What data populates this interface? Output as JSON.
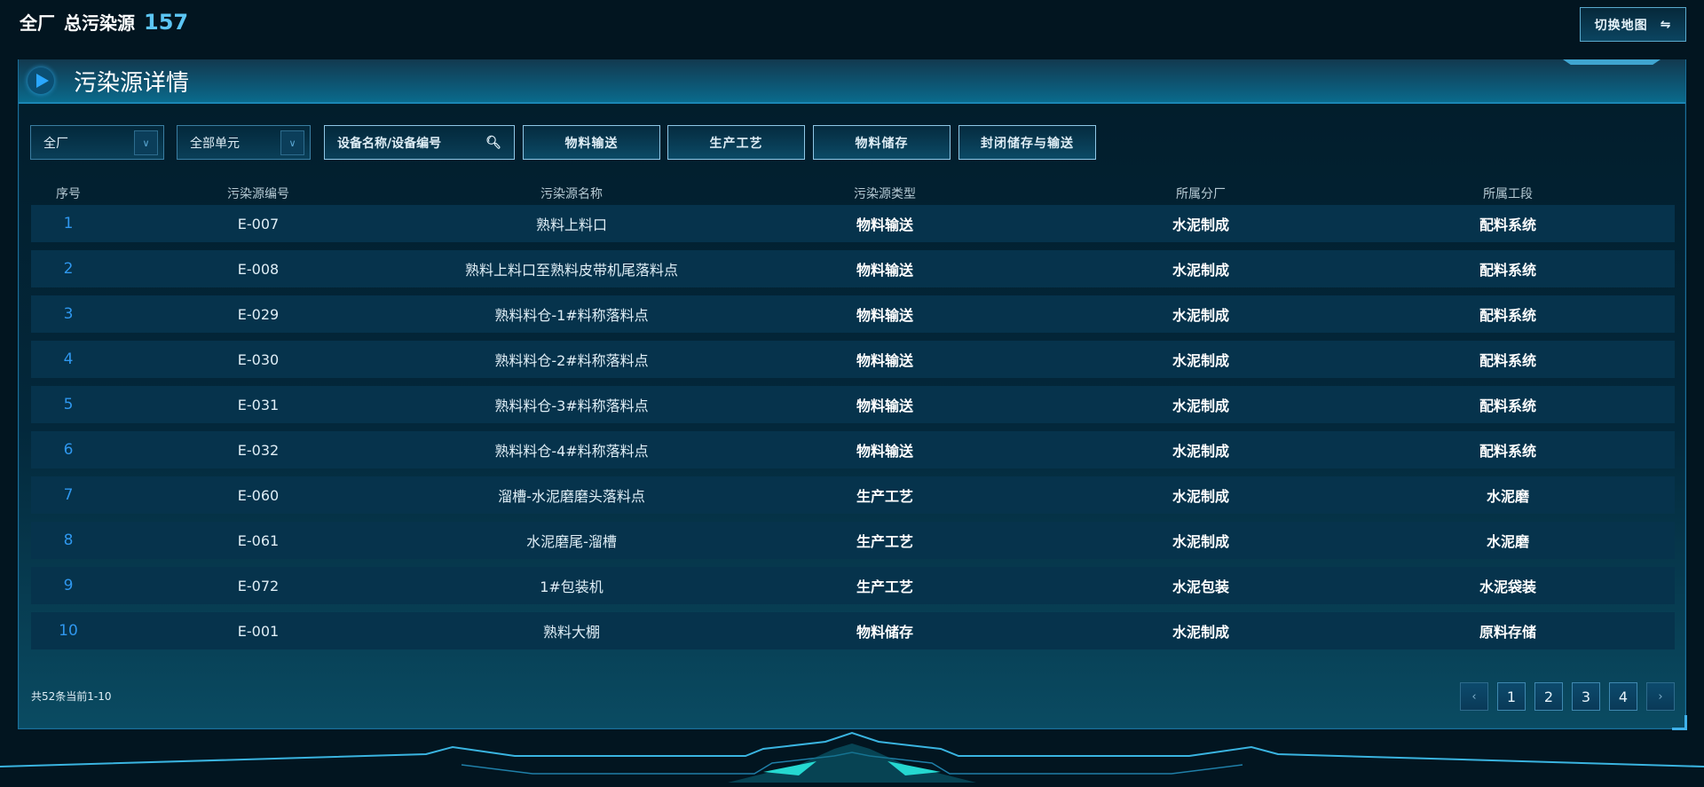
{
  "header": {
    "scope": "全厂",
    "label": "总污染源",
    "count": "157",
    "switch_label": "切换地图",
    "switch_icon": "swap-arrows-icon"
  },
  "panel": {
    "title": "污染源详情"
  },
  "filters": {
    "factory_select": "全厂",
    "unit_select": "全部单元",
    "search_placeholder": "设备名称/设备编号",
    "categories": [
      "物料输送",
      "生产工艺",
      "物料储存",
      "封闭储存与输送"
    ]
  },
  "table": {
    "columns": [
      "序号",
      "污染源编号",
      "污染源名称",
      "污染源类型",
      "所属分厂",
      "所属工段"
    ],
    "rows": [
      [
        "1",
        "E-007",
        "熟料上料口",
        "物料输送",
        "水泥制成",
        "配料系统"
      ],
      [
        "2",
        "E-008",
        "熟料上料口至熟料皮带机尾落料点",
        "物料输送",
        "水泥制成",
        "配料系统"
      ],
      [
        "3",
        "E-029",
        "熟料料仓-1#料称落料点",
        "物料输送",
        "水泥制成",
        "配料系统"
      ],
      [
        "4",
        "E-030",
        "熟料料仓-2#料称落料点",
        "物料输送",
        "水泥制成",
        "配料系统"
      ],
      [
        "5",
        "E-031",
        "熟料料仓-3#料称落料点",
        "物料输送",
        "水泥制成",
        "配料系统"
      ],
      [
        "6",
        "E-032",
        "熟料料仓-4#料称落料点",
        "物料输送",
        "水泥制成",
        "配料系统"
      ],
      [
        "7",
        "E-060",
        "溜槽-水泥磨磨头落料点",
        "生产工艺",
        "水泥制成",
        "水泥磨"
      ],
      [
        "8",
        "E-061",
        "水泥磨尾-溜槽",
        "生产工艺",
        "水泥制成",
        "水泥磨"
      ],
      [
        "9",
        "E-072",
        "1#包装机",
        "生产工艺",
        "水泥包装",
        "水泥袋装"
      ],
      [
        "10",
        "E-001",
        "熟料大棚",
        "物料储存",
        "水泥制成",
        "原料存储"
      ]
    ]
  },
  "pagination": {
    "summary": "共52条当前1-10",
    "pages": [
      "1",
      "2",
      "3",
      "4"
    ],
    "prev": "‹",
    "next": "›",
    "current_page": "1"
  },
  "colors": {
    "background": "#021520",
    "accent": "#2f97ee",
    "count": "#5cc6f5",
    "row": "#06334c"
  }
}
